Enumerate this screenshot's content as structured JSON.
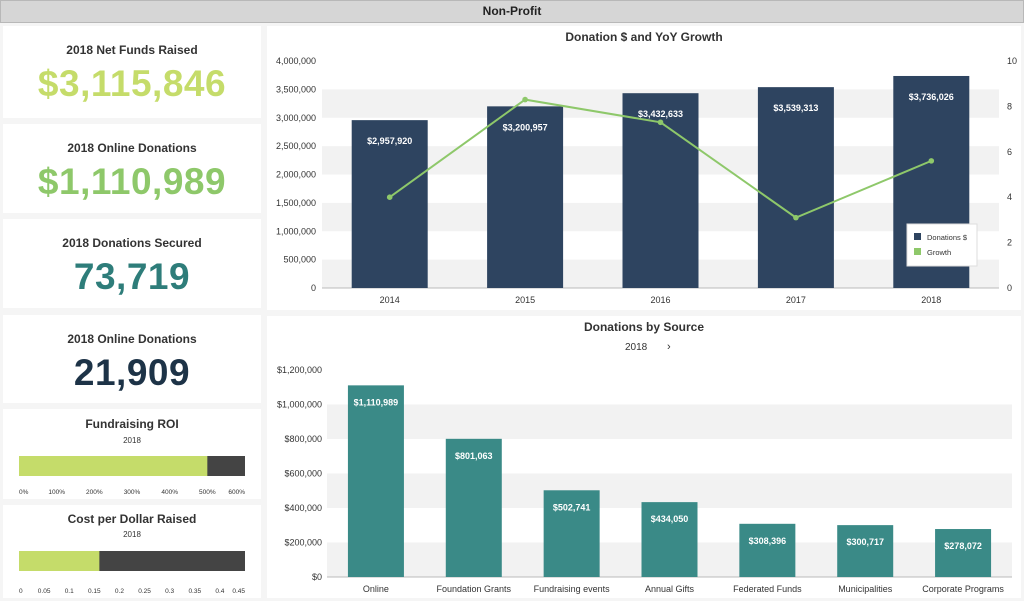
{
  "app_title": "Non-Profit",
  "kpis": [
    {
      "label": "2018 Net Funds Raised",
      "value": "$3,115,846",
      "color": "#c5dc6a"
    },
    {
      "label": "2018 Online Donations",
      "value": "$1,110,989",
      "color": "#8ec86a"
    },
    {
      "label": "2018 Donations Secured",
      "value": "73,719",
      "color": "#2e7d7a"
    },
    {
      "label": "2018 Online Donations",
      "value": "21,909",
      "color": "#1d3347"
    }
  ],
  "gauges": [
    {
      "title": "Fundraising ROI",
      "year": "2018",
      "value_pct": 500,
      "max_pct": 600,
      "ticks": [
        "0%",
        "100%",
        "200%",
        "300%",
        "400%",
        "500%",
        "600%"
      ]
    },
    {
      "title": "Cost per Dollar Raised",
      "year": "2018",
      "value": 0.16,
      "max": 0.45,
      "ticks": [
        "0",
        "0.05",
        "0.1",
        "0.15",
        "0.2",
        "0.25",
        "0.3",
        "0.35",
        "0.4",
        "0.45"
      ]
    }
  ],
  "colors": {
    "navy": "#2e4460",
    "green": "#8ec86a",
    "teal": "#3a8a87",
    "lime": "#c5dc6a",
    "dark": "#444444"
  },
  "chart_data": [
    {
      "type": "bar",
      "title": "Donation $ and YoY Growth",
      "categories": [
        "2014",
        "2015",
        "2016",
        "2017",
        "2018"
      ],
      "series": [
        {
          "name": "Donations $",
          "type": "bar",
          "axis": "left",
          "values": [
            2957920,
            3200957,
            3432633,
            3539313,
            3736026
          ],
          "labels": [
            "$2,957,920",
            "$3,200,957",
            "$3,432,633",
            "$3,539,313",
            "$3,736,026"
          ]
        },
        {
          "name": "Growth",
          "type": "line",
          "axis": "right",
          "values": [
            4.0,
            8.3,
            7.3,
            3.1,
            5.6
          ]
        }
      ],
      "ylim": [
        0,
        4000000
      ],
      "yticks": [
        "0",
        "500,000",
        "1,000,000",
        "1,500,000",
        "2,000,000",
        "2,500,000",
        "3,000,000",
        "3,500,000",
        "4,000,000"
      ],
      "y2lim": [
        0,
        10
      ],
      "y2ticks": [
        "0",
        "2",
        "4",
        "6",
        "8",
        "10"
      ],
      "legend": "bottom-right"
    },
    {
      "type": "bar",
      "title": "Donations by Source",
      "selector": "2018",
      "categories": [
        "Online",
        "Foundation Grants",
        "Fundraising events",
        "Annual Gifts",
        "Federated Funds",
        "Municipalities",
        "Corporate Programs"
      ],
      "values": [
        1110989,
        801063,
        502741,
        434050,
        308396,
        300717,
        278072
      ],
      "labels": [
        "$1,110,989",
        "$801,063",
        "$502,741",
        "$434,050",
        "$308,396",
        "$300,717",
        "$278,072"
      ],
      "ylim": [
        0,
        1200000
      ],
      "yticks": [
        "$0",
        "$200,000",
        "$400,000",
        "$600,000",
        "$800,000",
        "$1,000,000",
        "$1,200,000"
      ]
    }
  ]
}
